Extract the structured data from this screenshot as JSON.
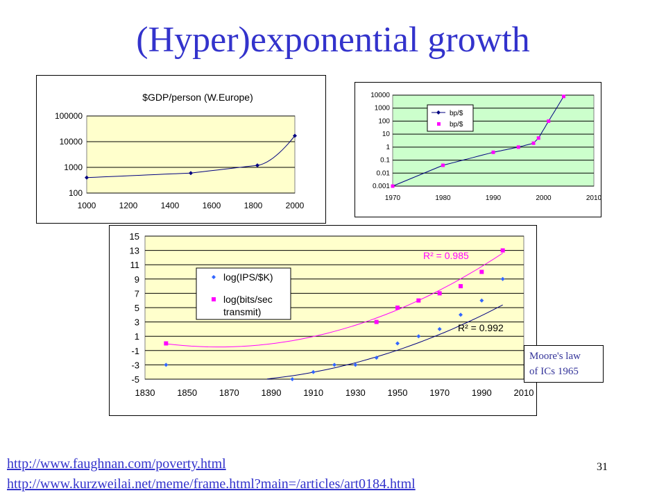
{
  "title": "(Hyper)exponential growth",
  "note": {
    "line1": "Moore's law",
    "line2": "of ICs 1965"
  },
  "links": [
    "http://www.faughnan.com/poverty.html",
    "http://www.kurzweilai.net/meme/frame.html?main=/articles/art0184.html"
  ],
  "page_number": "31",
  "colors": {
    "title": "#3333cc",
    "plot_yellow": "#ffffcc",
    "plot_green": "#ccffcc",
    "series_blue": "#000080",
    "series_magenta": "#ff00ff",
    "series_lightblue": "#3366ff"
  },
  "chart_data": [
    {
      "type": "line",
      "title": "$GDP/person (W.Europe)",
      "x_ticks": [
        "1000",
        "1200",
        "1400",
        "1600",
        "1800",
        "2000"
      ],
      "y_ticks": [
        "100",
        "1000",
        "10000",
        "100000"
      ],
      "y_scale": "log",
      "xlim": [
        1000,
        2000
      ],
      "ylim": [
        100,
        100000
      ],
      "series": [
        {
          "x": [
            1000,
            1500,
            1820,
            2000
          ],
          "y": [
            400,
            600,
            1200,
            17000
          ]
        }
      ]
    },
    {
      "type": "line",
      "x_ticks": [
        "1970",
        "1980",
        "1990",
        "2000",
        "2010"
      ],
      "y_ticks": [
        "0.001",
        "0.01",
        "0.1",
        "1",
        "10",
        "100",
        "1000",
        "10000"
      ],
      "y_scale": "log",
      "xlim": [
        1970,
        2010
      ],
      "ylim": [
        0.001,
        10000
      ],
      "legend_entries": [
        "bp/$",
        "bp/$"
      ],
      "legend_position": "top-left",
      "series": [
        {
          "name": "bp/$",
          "x": [
            1970,
            1980,
            1990,
            1995,
            1998,
            1999,
            2001,
            2004
          ],
          "y": [
            0.001,
            0.04,
            0.4,
            1,
            2,
            5,
            100,
            8000
          ]
        }
      ]
    },
    {
      "type": "scatter",
      "x_ticks": [
        "1830",
        "1850",
        "1870",
        "1890",
        "1910",
        "1930",
        "1950",
        "1970",
        "1990",
        "2010"
      ],
      "y_ticks": [
        "15",
        "13",
        "11",
        "9",
        "7",
        "5",
        "3",
        "1",
        "-1",
        "-3",
        "-5"
      ],
      "xlim": [
        1830,
        2010
      ],
      "ylim": [
        -5,
        15
      ],
      "legend_position": "top-left",
      "annotations": {
        "r2_magenta": "R² = 0.985",
        "r2_blue": "R² = 0.992"
      },
      "series": [
        {
          "name": "log(IPS/$K)",
          "x": [
            1840,
            1900,
            1910,
            1920,
            1930,
            1940,
            1950,
            1960,
            1970,
            1980,
            1990,
            2000
          ],
          "y": [
            -3,
            -5,
            -4,
            -3,
            -3,
            -2,
            0,
            1,
            2,
            4,
            6,
            9
          ]
        },
        {
          "name": "log(bits/sec transmit)",
          "x": [
            1840,
            1940,
            1950,
            1960,
            1970,
            1980,
            1990,
            2000
          ],
          "y": [
            0,
            3,
            5,
            6,
            7,
            8,
            10,
            13
          ]
        }
      ]
    }
  ]
}
